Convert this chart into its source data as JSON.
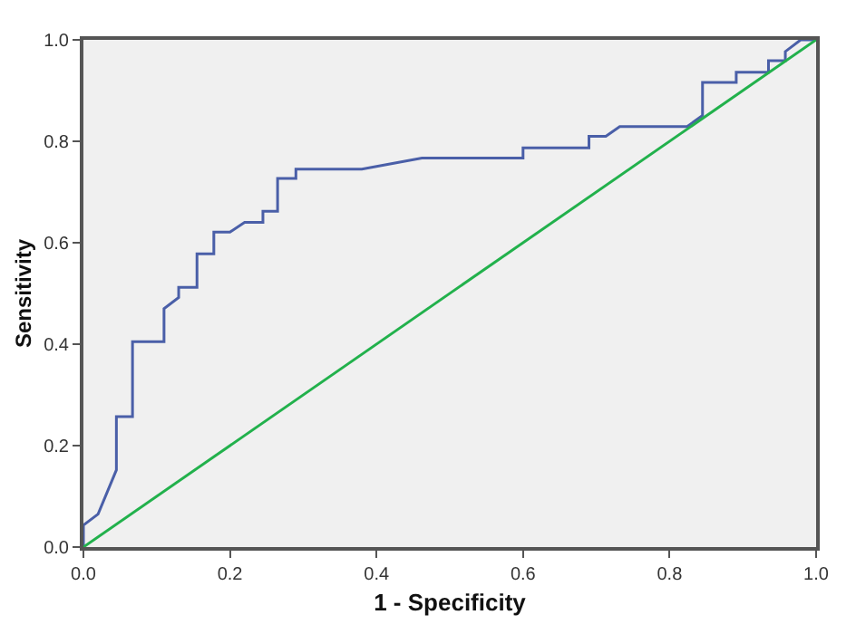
{
  "chart_data": {
    "type": "line",
    "xlabel": "1 - Specificity",
    "ylabel": "Sensitivity",
    "xlim": [
      0,
      1
    ],
    "ylim": [
      0,
      1
    ],
    "xticks": [
      {
        "value": 0,
        "label": "0.0"
      },
      {
        "value": 0.2,
        "label": "0.2"
      },
      {
        "value": 0.4,
        "label": "0.4"
      },
      {
        "value": 0.6,
        "label": "0.6"
      },
      {
        "value": 0.8,
        "label": "0.8"
      },
      {
        "value": 1,
        "label": "1.0"
      }
    ],
    "yticks": [
      {
        "value": 0,
        "label": "0.0"
      },
      {
        "value": 0.2,
        "label": "0.2"
      },
      {
        "value": 0.4,
        "label": "0.4"
      },
      {
        "value": 0.6,
        "label": "0.6"
      },
      {
        "value": 0.8,
        "label": "0.8"
      },
      {
        "value": 1,
        "label": "1.0"
      }
    ],
    "grid": false,
    "marker": "none",
    "line_style": "solid",
    "series": [
      {
        "color": "#4a5fa8",
        "x": [
          0,
          0,
          0.02,
          0.045,
          0.045,
          0.067,
          0.067,
          0.11,
          0.11,
          0.13,
          0.13,
          0.155,
          0.155,
          0.178,
          0.178,
          0.2,
          0.22,
          0.245,
          0.245,
          0.265,
          0.265,
          0.29,
          0.29,
          0.38,
          0.462,
          0.6,
          0.6,
          0.69,
          0.69,
          0.713,
          0.732,
          0.824,
          0.845,
          0.845,
          0.891,
          0.891,
          0.935,
          0.935,
          0.958,
          0.958,
          0.979,
          1
        ],
        "values": [
          0,
          0.043,
          0.065,
          0.152,
          0.257,
          0.257,
          0.405,
          0.405,
          0.47,
          0.492,
          0.512,
          0.512,
          0.578,
          0.578,
          0.621,
          0.621,
          0.64,
          0.64,
          0.662,
          0.662,
          0.727,
          0.727,
          0.745,
          0.745,
          0.767,
          0.767,
          0.787,
          0.787,
          0.81,
          0.81,
          0.829,
          0.829,
          0.851,
          0.916,
          0.916,
          0.936,
          0.936,
          0.959,
          0.959,
          0.977,
          1,
          1
        ]
      },
      {
        "color": "#22b14c",
        "x": [
          0,
          1
        ],
        "values": [
          0,
          1
        ]
      }
    ]
  }
}
